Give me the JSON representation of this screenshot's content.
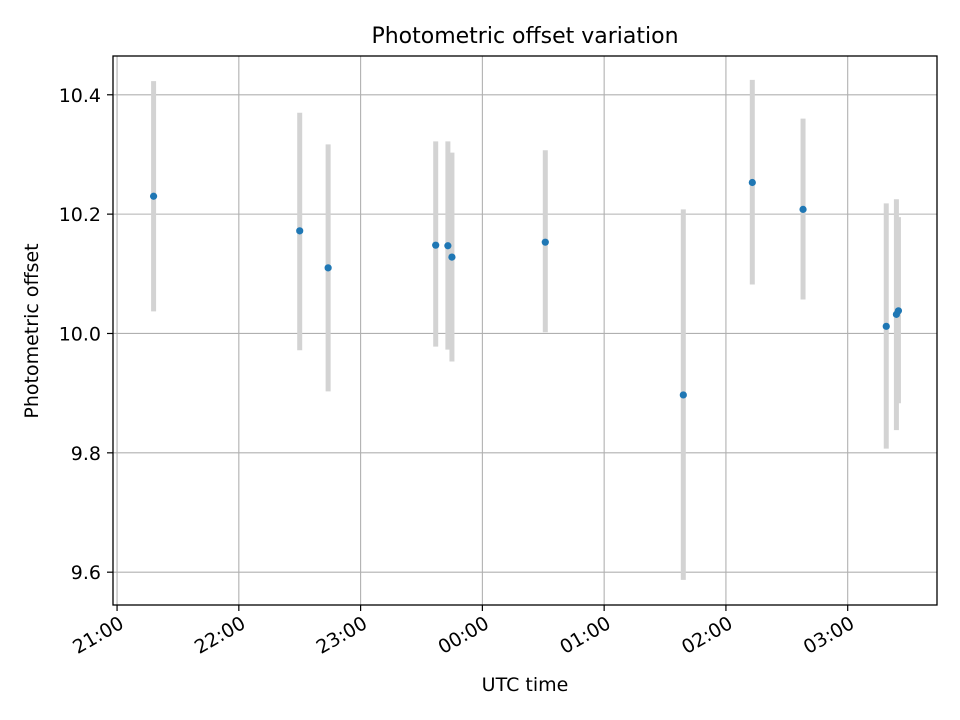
{
  "chart_data": {
    "type": "scatter",
    "title": "Photometric offset variation",
    "xlabel": "UTC time",
    "ylabel": "Photometric offset",
    "x_axis": {
      "kind": "time",
      "range": [
        "20:58",
        "03:44"
      ],
      "ticks": [
        "21:00",
        "22:00",
        "23:00",
        "00:00",
        "01:00",
        "02:00",
        "03:00"
      ]
    },
    "y_axis": {
      "range": [
        9.545,
        10.465
      ],
      "ticks": [
        9.6,
        9.8,
        10.0,
        10.2,
        10.4
      ],
      "tick_labels": [
        "9.6",
        "9.8",
        "10.0",
        "10.2",
        "10.4"
      ]
    },
    "grid": true,
    "series": [
      {
        "marker_color": "#1f77b4",
        "errorbar_color": "#d3d3d3",
        "points": [
          {
            "time": "21:18",
            "y": 10.23,
            "ymin": 10.037,
            "ymax": 10.423
          },
          {
            "time": "22:30",
            "y": 10.172,
            "ymin": 9.972,
            "ymax": 10.37
          },
          {
            "time": "22:44",
            "y": 10.11,
            "ymin": 9.903,
            "ymax": 10.317
          },
          {
            "time": "23:37",
            "y": 10.148,
            "ymin": 9.978,
            "ymax": 10.322
          },
          {
            "time": "23:43",
            "y": 10.147,
            "ymin": 9.973,
            "ymax": 10.322
          },
          {
            "time": "23:45",
            "y": 10.128,
            "ymin": 9.953,
            "ymax": 10.303
          },
          {
            "time": "00:31",
            "y": 10.153,
            "ymin": 10.002,
            "ymax": 10.307
          },
          {
            "time": "01:39",
            "y": 9.897,
            "ymin": 9.587,
            "ymax": 10.208
          },
          {
            "time": "02:13",
            "y": 10.253,
            "ymin": 10.082,
            "ymax": 10.425
          },
          {
            "time": "02:38",
            "y": 10.208,
            "ymin": 10.057,
            "ymax": 10.36
          },
          {
            "time": "03:19",
            "y": 10.012,
            "ymin": 9.807,
            "ymax": 10.218
          },
          {
            "time": "03:24",
            "y": 10.032,
            "ymin": 9.838,
            "ymax": 10.225
          },
          {
            "time": "03:25",
            "y": 10.038,
            "ymin": 9.883,
            "ymax": 10.195
          }
        ]
      }
    ]
  }
}
